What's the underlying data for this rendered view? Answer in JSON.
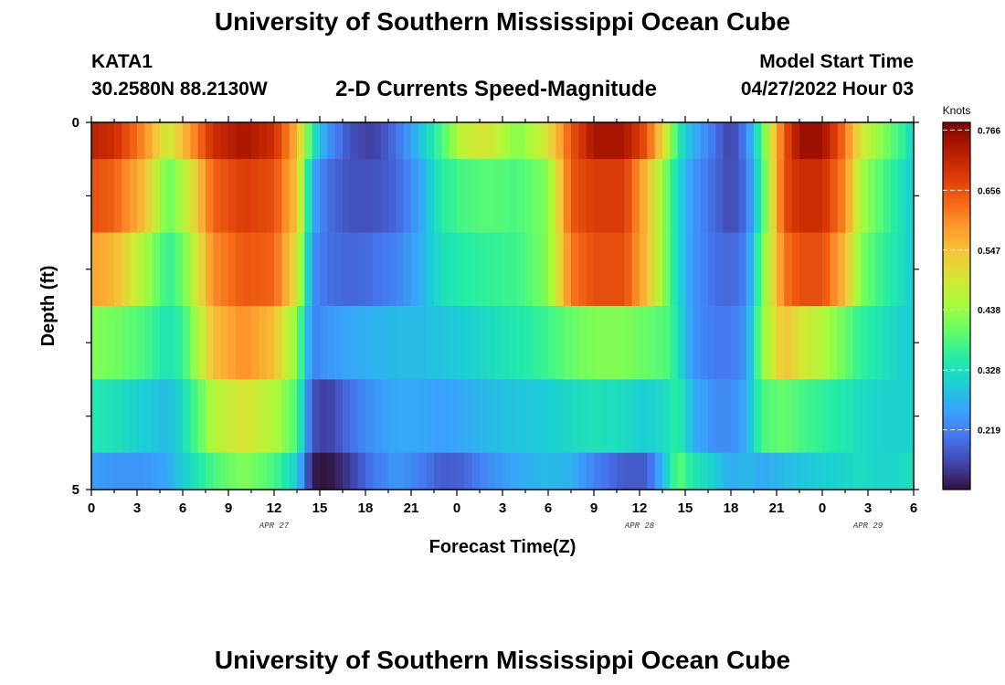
{
  "header": {
    "title": "University of Southern Mississippi Ocean Cube",
    "station_id": "KATA1",
    "station_coords": "30.2580N  88.2130W",
    "chart_title": "2-D Currents Speed-Magnitude",
    "model_label": "Model Start Time",
    "model_time": "04/27/2022 Hour 03"
  },
  "footer": {
    "title": "University of Southern Mississippi Ocean Cube"
  },
  "colors": {
    "colormap": [
      "#30123b",
      "#4145ab",
      "#4675ed",
      "#39a2fc",
      "#1bcfd4",
      "#24eca6",
      "#61fc6c",
      "#a4fc3b",
      "#d1e834",
      "#f3c63a",
      "#fe9b2d",
      "#f36315",
      "#d93806",
      "#b11901",
      "#7a0402"
    ]
  },
  "chart_data": {
    "type": "heatmap",
    "title": "2-D Currents Speed-Magnitude",
    "xlabel": "Forecast Time(Z)",
    "ylabel": "Depth (ft)",
    "x_tick_labels": [
      "0",
      "3",
      "6",
      "9",
      "12",
      "15",
      "18",
      "21",
      "0",
      "3",
      "6",
      "9",
      "12",
      "15",
      "18",
      "21",
      "0",
      "3",
      "6"
    ],
    "date_labels": [
      {
        "label": "APR 27",
        "at_hour": 12
      },
      {
        "label": "APR 28",
        "at_hour": 36
      },
      {
        "label": "APR 29",
        "at_hour": 51
      }
    ],
    "y_tick_labels": [
      "0",
      "5"
    ],
    "ylim": [
      0,
      5
    ],
    "hours_range": [
      0,
      54
    ],
    "depth_bands": [
      0.25,
      1.0,
      2.0,
      3.0,
      4.0,
      4.75
    ],
    "band_edges": [
      0,
      0.5,
      1.5,
      2.5,
      3.5,
      4.5,
      5
    ],
    "colorbar": {
      "label": "Knots",
      "ticks": [
        0.219,
        0.328,
        0.438,
        0.547,
        0.656,
        0.766
      ],
      "range": [
        0.11,
        0.78
      ]
    },
    "key_hours": [
      0,
      1.5,
      3.5,
      5,
      6,
      8,
      10,
      12,
      13.5,
      14.5,
      15.5,
      17,
      18.5,
      20,
      21.5,
      23,
      24.5,
      26,
      28,
      30,
      31.5,
      33,
      35,
      36.5,
      38,
      38.5,
      39.5,
      41,
      42,
      43,
      44,
      45.5,
      46.5,
      48,
      49.5,
      50.5,
      52,
      53.5,
      54
    ],
    "speed_rows": [
      [
        0.72,
        0.7,
        0.6,
        0.48,
        0.55,
        0.7,
        0.74,
        0.7,
        0.56,
        0.35,
        0.24,
        0.17,
        0.15,
        0.2,
        0.28,
        0.38,
        0.48,
        0.5,
        0.42,
        0.5,
        0.65,
        0.74,
        0.74,
        0.65,
        0.45,
        0.35,
        0.27,
        0.2,
        0.15,
        0.22,
        0.38,
        0.65,
        0.75,
        0.75,
        0.62,
        0.5,
        0.42,
        0.35,
        0.3
      ],
      [
        0.66,
        0.64,
        0.55,
        0.4,
        0.45,
        0.64,
        0.68,
        0.66,
        0.54,
        0.27,
        0.2,
        0.17,
        0.17,
        0.19,
        0.25,
        0.35,
        0.38,
        0.39,
        0.38,
        0.42,
        0.65,
        0.68,
        0.68,
        0.55,
        0.38,
        0.32,
        0.24,
        0.19,
        0.16,
        0.2,
        0.36,
        0.66,
        0.7,
        0.7,
        0.6,
        0.45,
        0.38,
        0.32,
        0.3
      ],
      [
        0.58,
        0.56,
        0.45,
        0.36,
        0.4,
        0.6,
        0.65,
        0.64,
        0.5,
        0.24,
        0.2,
        0.19,
        0.2,
        0.22,
        0.26,
        0.33,
        0.35,
        0.36,
        0.37,
        0.42,
        0.62,
        0.66,
        0.66,
        0.55,
        0.38,
        0.32,
        0.24,
        0.2,
        0.19,
        0.22,
        0.4,
        0.62,
        0.66,
        0.66,
        0.55,
        0.42,
        0.36,
        0.32,
        0.3
      ],
      [
        0.42,
        0.41,
        0.38,
        0.33,
        0.36,
        0.55,
        0.6,
        0.55,
        0.42,
        0.22,
        0.24,
        0.26,
        0.27,
        0.28,
        0.28,
        0.29,
        0.3,
        0.32,
        0.34,
        0.37,
        0.4,
        0.42,
        0.42,
        0.4,
        0.38,
        0.33,
        0.24,
        0.21,
        0.21,
        0.24,
        0.42,
        0.55,
        0.5,
        0.46,
        0.4,
        0.36,
        0.33,
        0.3,
        0.3
      ],
      [
        0.34,
        0.33,
        0.3,
        0.28,
        0.32,
        0.46,
        0.5,
        0.46,
        0.38,
        0.17,
        0.15,
        0.2,
        0.24,
        0.26,
        0.26,
        0.25,
        0.26,
        0.28,
        0.29,
        0.3,
        0.32,
        0.33,
        0.32,
        0.3,
        0.33,
        0.36,
        0.27,
        0.23,
        0.23,
        0.26,
        0.38,
        0.4,
        0.38,
        0.36,
        0.34,
        0.32,
        0.31,
        0.31,
        0.31
      ],
      [
        0.25,
        0.24,
        0.24,
        0.26,
        0.3,
        0.38,
        0.42,
        0.38,
        0.3,
        0.12,
        0.11,
        0.15,
        0.21,
        0.24,
        0.22,
        0.18,
        0.19,
        0.23,
        0.26,
        0.28,
        0.27,
        0.22,
        0.18,
        0.18,
        0.33,
        0.4,
        0.34,
        0.3,
        0.26,
        0.28,
        0.26,
        0.28,
        0.29,
        0.3,
        0.31,
        0.32,
        0.31,
        0.32,
        0.33
      ]
    ]
  }
}
